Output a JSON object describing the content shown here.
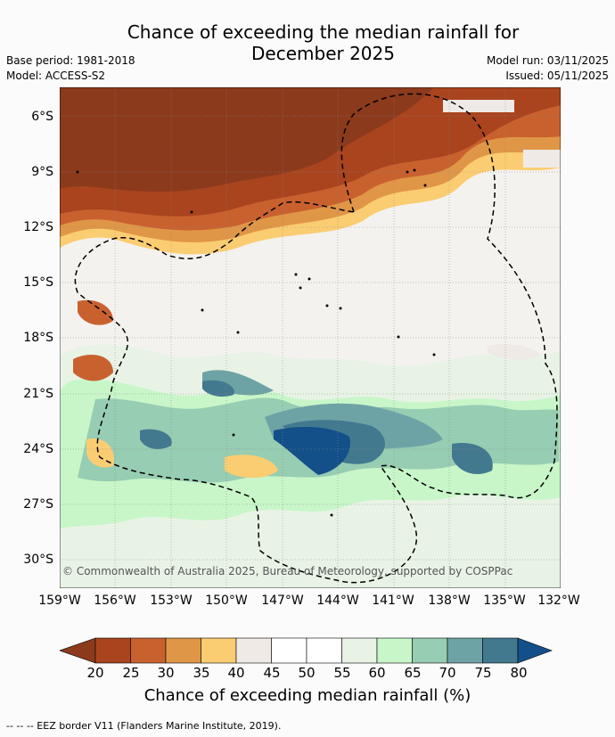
{
  "header": {
    "title_line1": "Chance of exceeding the median rainfall for",
    "title_line2": "December 2025",
    "base_period": "Base period: 1981-2018",
    "model": "Model: ACCESS-S2",
    "model_run": "Model run: 03/11/2025",
    "issued": "Issued: 05/11/2025"
  },
  "map": {
    "lat_labels": [
      "6°S",
      "9°S",
      "12°S",
      "15°S",
      "18°S",
      "21°S",
      "24°S",
      "27°S",
      "30°S"
    ],
    "lon_labels": [
      "159°W",
      "156°W",
      "153°W",
      "150°W",
      "147°W",
      "144°W",
      "141°W",
      "138°W",
      "135°W",
      "132°W"
    ],
    "copyright": "© Commonwealth of Australia 2025, Bureau of Meteorology, supported by COSPPac"
  },
  "colorbar": {
    "ticks": [
      "20",
      "25",
      "30",
      "35",
      "40",
      "45",
      "50",
      "55",
      "60",
      "65",
      "70",
      "75",
      "80"
    ],
    "colors": [
      "#8c3a1c",
      "#a9441f",
      "#c9612f",
      "#e09647",
      "#fbcd72",
      "#efeae6",
      "#ffffff",
      "#ffffff",
      "#e8f3e6",
      "#c8f6c8",
      "#97cdb2",
      "#6ea3a6",
      "#43798f",
      "#13508a"
    ],
    "title": "Chance of exceeding median rainfall (%)"
  },
  "footnote": "--  --  -- EEZ border V11 (Flanders Marine Institute, 2019)."
}
